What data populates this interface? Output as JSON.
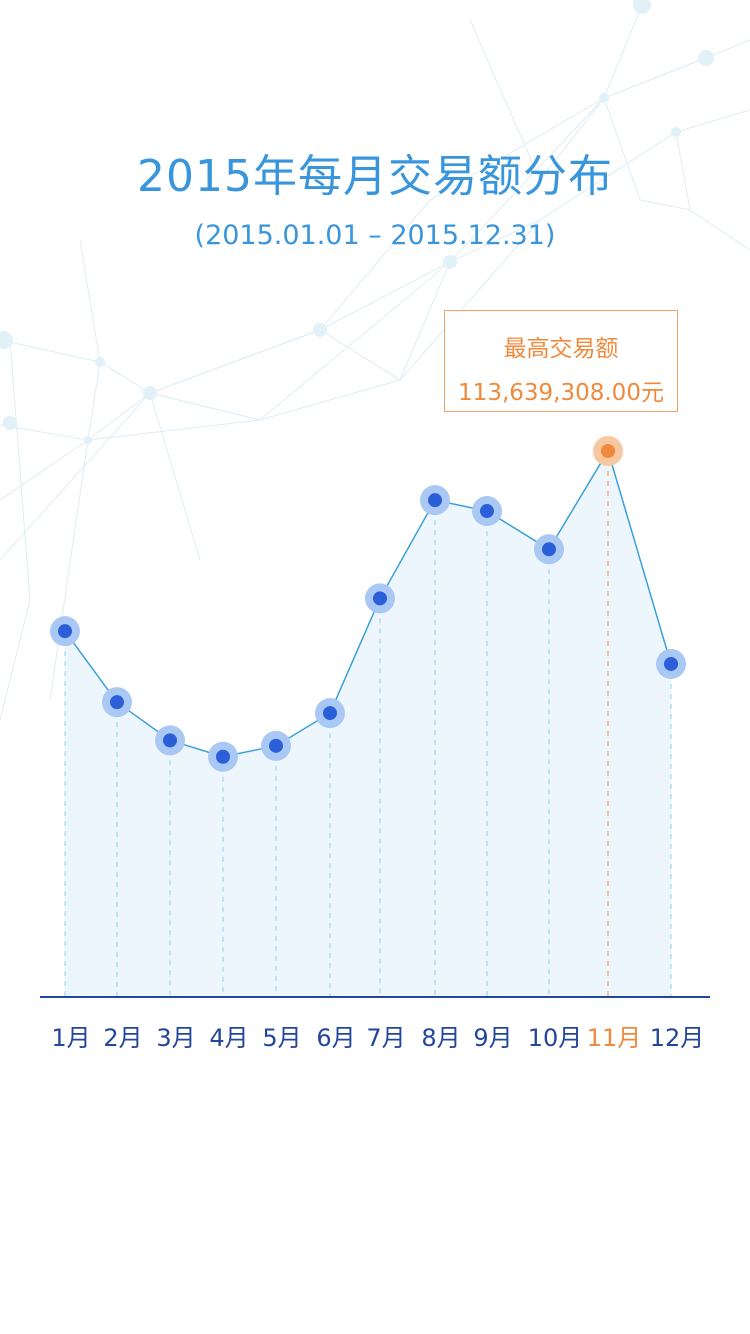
{
  "header": {
    "title": "2015年每月交易额分布",
    "subtitle": "(2015.01.01 – 2015.12.31)"
  },
  "highlight": {
    "label": "最高交易额",
    "value": "113,639,308.00元",
    "month_index": 10
  },
  "colors": {
    "title": "#3a96dc",
    "line": "#3aa0dc",
    "point": "#2a5fd8",
    "point_halo": "#a9c8f4",
    "highlight": "#ef8a3c",
    "highlight_halo": "#f7c7a0",
    "axis": "#23459c",
    "area_fill": "#eef6fd",
    "dash": "#8fd3e6"
  },
  "chart_data": {
    "type": "area",
    "title": "2015年每月交易额分布",
    "categories": [
      "1月",
      "2月",
      "3月",
      "4月",
      "5月",
      "6月",
      "7月",
      "8月",
      "9月",
      "10月",
      "11月",
      "12月"
    ],
    "values": [
      67,
      54,
      47,
      44,
      46,
      52,
      73,
      91,
      89,
      82,
      100,
      61
    ],
    "ylim": [
      0,
      100
    ],
    "grid": false,
    "legend": "none"
  }
}
